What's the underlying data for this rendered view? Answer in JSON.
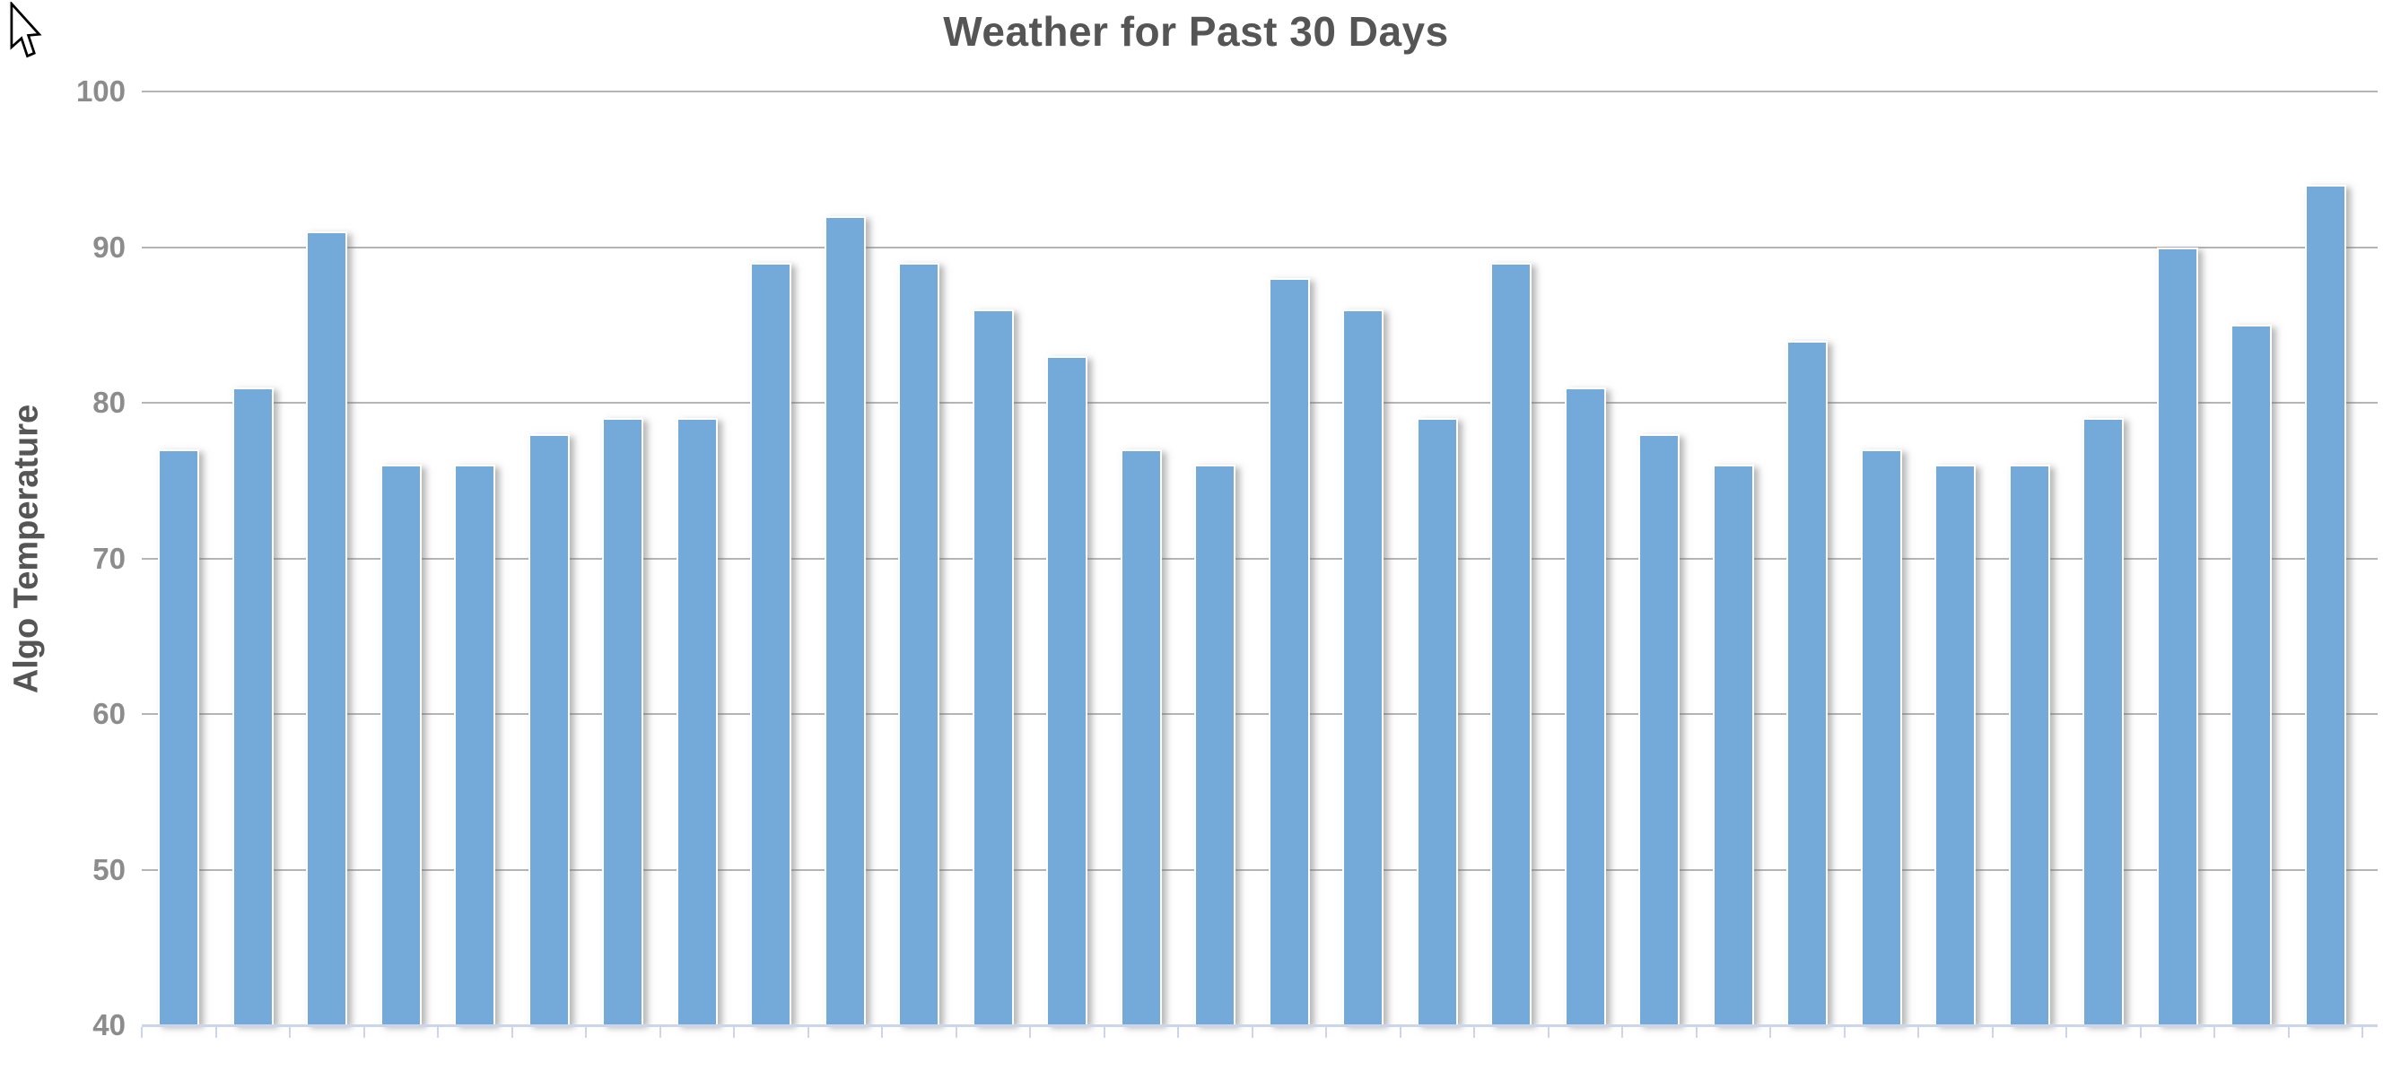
{
  "chart_data": {
    "type": "bar",
    "title": "Weather for Past 30 Days",
    "ylabel": "Algo Temperature",
    "xlabel": "",
    "values": [
      77,
      81,
      91,
      76,
      76,
      78,
      79,
      79,
      89,
      92,
      89,
      86,
      83,
      77,
      76,
      88,
      86,
      79,
      89,
      81,
      78,
      76,
      84,
      77,
      76,
      76,
      79,
      90,
      85,
      94
    ],
    "ylim": [
      40,
      100
    ],
    "yticks": [
      100,
      90,
      80,
      70,
      60,
      50,
      40
    ],
    "x_tick_marks": "category-boundaries",
    "x_tick_labels": [],
    "grid": true,
    "legend_position": "none",
    "colors": {
      "bar": "#74aad9",
      "bar_border": "#ffffff",
      "grid": "#b5b5b5",
      "axis_line": "#ccd6eb",
      "title_text": "#555555",
      "y_axis_title_text": "#555555",
      "axis_labels": "#8c8c8c"
    }
  }
}
